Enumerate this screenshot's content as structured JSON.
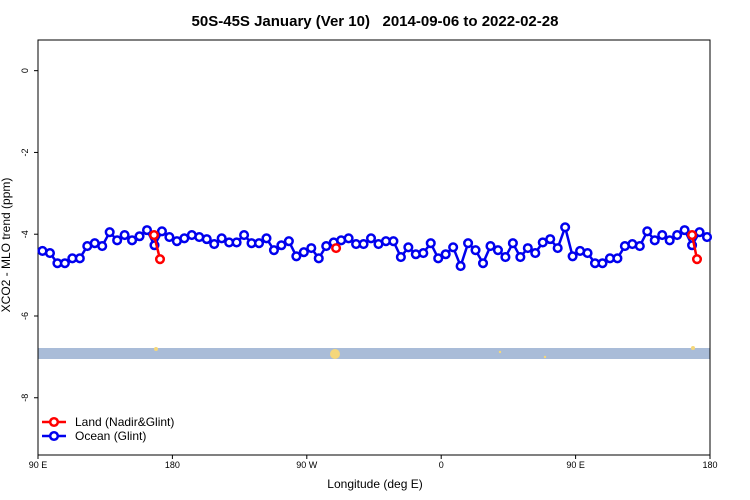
{
  "chart_data": {
    "type": "line",
    "title": "50S-45S January (Ver 10)   2014-09-06 to 2022-02-28",
    "x_label": "Longitude (deg E)",
    "y_label": "XCO2 - MLO trend (ppm)",
    "xlim": [
      90,
      540
    ],
    "xticks": [
      {
        "value": 90,
        "label": "90 E"
      },
      180,
      {
        "value": 270,
        "label": "90 W"
      },
      {
        "value": 360,
        "label": "0"
      },
      {
        "value": 450,
        "label": "90 E"
      },
      {
        "value": 540,
        "label": "180"
      }
    ],
    "ylim": [
      -9.4,
      0.75
    ],
    "yticks": [
      0,
      -2,
      -4,
      -6,
      -8
    ],
    "legend": "bottom-left",
    "series": [
      {
        "name": "Land (Nadir&Glint)",
        "color": "#ff0000",
        "x": [
          167.7,
          171.7,
          null,
          289.6,
          null,
          528,
          531.3
        ],
        "values": [
          -4.02,
          -4.61,
          null,
          -4.34,
          null,
          -4.02,
          -4.61
        ]
      },
      {
        "name": "Ocean (Glint)",
        "color": "#0000ee",
        "x": [
          93,
          98,
          103,
          108,
          113,
          118,
          123,
          128,
          133,
          138,
          143,
          148,
          153,
          158,
          163,
          168,
          173,
          178,
          183,
          188,
          193,
          198,
          203,
          208,
          213,
          218,
          223,
          228,
          233,
          238,
          243,
          248,
          253,
          258,
          263,
          268,
          273,
          278,
          283,
          288,
          293,
          298,
          303,
          308,
          313,
          318,
          323,
          328,
          333,
          338,
          343,
          348,
          353,
          358,
          363,
          368,
          373,
          378,
          383,
          388,
          393,
          398,
          403,
          408,
          413,
          418,
          423,
          428,
          433,
          438,
          443,
          448,
          453,
          458,
          463,
          468,
          473,
          478,
          483,
          488,
          493,
          498,
          503,
          508,
          513,
          518,
          523,
          528,
          533,
          538
        ],
        "values": [
          -4.41,
          -4.46,
          -4.71,
          -4.71,
          -4.59,
          -4.59,
          -4.29,
          -4.22,
          -4.29,
          -3.95,
          -4.15,
          -4.02,
          -4.15,
          -4.05,
          -3.9,
          -4.27,
          -3.93,
          -4.07,
          -4.17,
          -4.1,
          -4.02,
          -4.07,
          -4.12,
          -4.24,
          -4.1,
          -4.2,
          -4.2,
          -4.02,
          -4.22,
          -4.22,
          -4.1,
          -4.39,
          -4.27,
          -4.17,
          -4.54,
          -4.44,
          -4.34,
          -4.59,
          -4.29,
          -4.2,
          -4.15,
          -4.1,
          -4.24,
          -4.24,
          -4.1,
          -4.24,
          -4.17,
          -4.17,
          -4.56,
          -4.32,
          -4.49,
          -4.46,
          -4.22,
          -4.59,
          -4.49,
          -4.32,
          -4.78,
          -4.22,
          -4.39,
          -4.71,
          -4.29,
          -4.39,
          -4.56,
          -4.22,
          -4.56,
          -4.34,
          -4.46,
          -4.2,
          -4.12,
          -4.34,
          -3.83,
          -4.54,
          -4.41,
          -4.46,
          -4.71,
          -4.71,
          -4.59,
          -4.59,
          -4.29,
          -4.24,
          -4.29,
          -3.93,
          -4.15,
          -4.02,
          -4.15,
          -4.02,
          -3.9,
          -4.27,
          -3.95,
          -4.07
        ]
      }
    ]
  }
}
